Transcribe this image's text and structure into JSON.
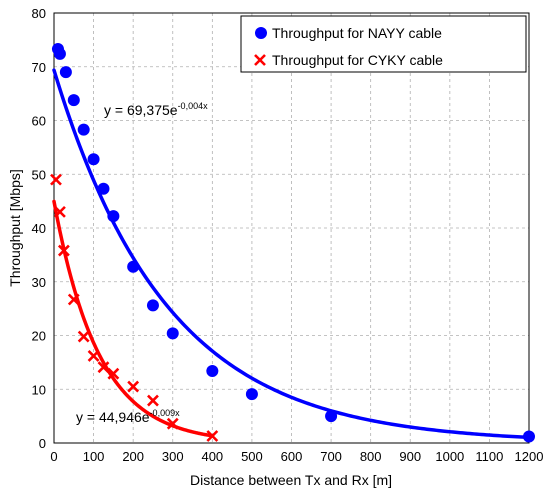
{
  "chart_data": {
    "type": "scatter",
    "title": "",
    "xlabel": "Distance between Tx and Rx [m]",
    "ylabel": "Throughput  [Mbps]",
    "xlim": [
      0,
      1200
    ],
    "ylim": [
      0,
      80
    ],
    "xticks": [
      "0",
      "100",
      "200",
      "300",
      "400",
      "500",
      "600",
      "700",
      "800",
      "900",
      "1000",
      "1100",
      "1200"
    ],
    "yticks": [
      "0",
      "10",
      "20",
      "30",
      "40",
      "50",
      "60",
      "70",
      "80"
    ],
    "grid": true,
    "legend_position": "top-right",
    "series": [
      {
        "name": "Throughput for NAYY cable",
        "marker": "circle",
        "color": "#0000ff",
        "x": [
          10,
          15,
          30,
          50,
          75,
          100,
          125,
          150,
          200,
          250,
          300,
          400,
          500,
          700,
          1200
        ],
        "y": [
          73.3,
          72.4,
          69.0,
          63.8,
          58.3,
          52.8,
          47.3,
          42.2,
          32.8,
          25.6,
          20.4,
          13.4,
          9.1,
          5.0,
          1.2
        ],
        "trendline": {
          "equation_base": "y = 69,375e",
          "equation_exp": "-0,004x",
          "a": 69.375,
          "b": -0.0035,
          "x_range": [
            0,
            1200
          ]
        }
      },
      {
        "name": "Throughput for CYKY cable",
        "marker": "x",
        "color": "#ff0000",
        "x": [
          5,
          15,
          25,
          50,
          75,
          100,
          125,
          150,
          200,
          250,
          300,
          400
        ],
        "y": [
          49.0,
          43.0,
          35.8,
          26.7,
          19.8,
          16.2,
          14.1,
          12.9,
          10.5,
          7.9,
          3.6,
          1.3
        ],
        "trendline": {
          "equation_base": "y = 44,946e",
          "equation_exp": "-0,009x",
          "a": 44.946,
          "b": -0.0088,
          "x_range": [
            0,
            400
          ]
        }
      }
    ]
  }
}
